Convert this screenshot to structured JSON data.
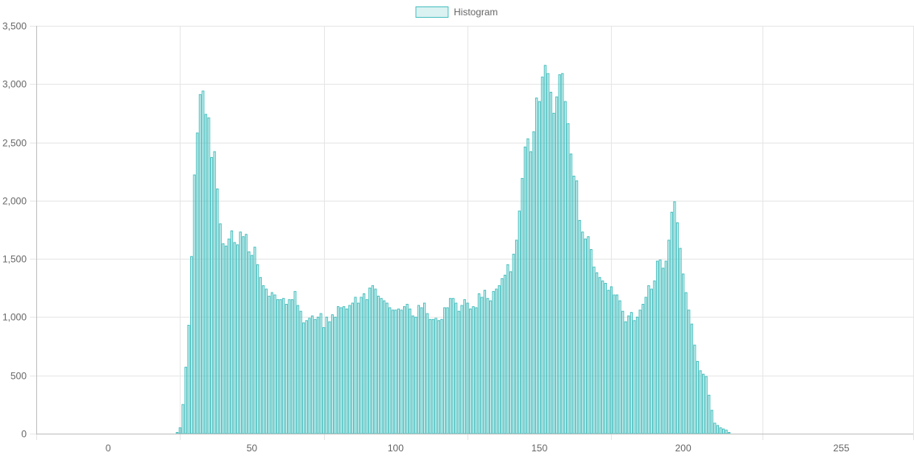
{
  "chart_data": {
    "type": "bar",
    "legend": {
      "position": "top",
      "color": "#4bc0c0"
    },
    "series": [
      {
        "name": "Histogram",
        "color": "#4bc0c0",
        "x_start": 0,
        "values": [
          0,
          0,
          0,
          0,
          0,
          0,
          0,
          0,
          0,
          0,
          0,
          0,
          0,
          0,
          0,
          0,
          0,
          0,
          0,
          0,
          0,
          0,
          0,
          0,
          10,
          50,
          250,
          570,
          930,
          1520,
          2220,
          2580,
          2910,
          2940,
          2740,
          2710,
          2370,
          2420,
          2100,
          1800,
          1630,
          1610,
          1670,
          1740,
          1640,
          1620,
          1730,
          1690,
          1710,
          1560,
          1530,
          1600,
          1450,
          1340,
          1270,
          1240,
          1180,
          1210,
          1190,
          1150,
          1150,
          1160,
          1110,
          1150,
          1150,
          1220,
          1100,
          1050,
          950,
          970,
          990,
          1010,
          980,
          1000,
          1030,
          910,
          1000,
          960,
          1020,
          1000,
          1090,
          1080,
          1090,
          1070,
          1100,
          1120,
          1170,
          1120,
          1170,
          1200,
          1150,
          1250,
          1270,
          1240,
          1180,
          1160,
          1140,
          1120,
          1080,
          1060,
          1060,
          1070,
          1060,
          1090,
          1110,
          1070,
          1010,
          1000,
          1100,
          1080,
          1120,
          1030,
          980,
          980,
          990,
          970,
          980,
          1080,
          1080,
          1160,
          1160,
          1120,
          1050,
          1100,
          1150,
          1120,
          1070,
          1090,
          1080,
          1200,
          1170,
          1230,
          1160,
          1140,
          1220,
          1240,
          1270,
          1330,
          1360,
          1450,
          1390,
          1540,
          1660,
          1910,
          2190,
          2460,
          2530,
          2420,
          2590,
          2880,
          2850,
          3060,
          3160,
          3090,
          2930,
          2750,
          2890,
          3080,
          3090,
          2850,
          2660,
          2400,
          2210,
          2170,
          1830,
          1730,
          1670,
          1690,
          1580,
          1430,
          1380,
          1340,
          1310,
          1290,
          1230,
          1260,
          1190,
          1190,
          1140,
          1050,
          960,
          1010,
          1040,
          970,
          1000,
          1060,
          1110,
          1170,
          1270,
          1240,
          1310,
          1480,
          1490,
          1420,
          1480,
          1660,
          1900,
          1990,
          1810,
          1590,
          1370,
          1210,
          1060,
          940,
          760,
          620,
          540,
          510,
          490,
          330,
          200,
          90,
          70,
          50,
          40,
          30,
          10,
          0,
          0,
          0,
          0,
          0,
          0,
          0,
          0,
          0,
          0,
          0,
          0,
          0,
          0,
          0,
          0,
          0,
          0,
          0,
          0,
          0,
          0,
          0,
          0,
          0,
          0,
          0,
          0,
          0,
          0,
          0,
          0,
          0,
          0,
          0,
          0,
          0,
          0,
          0,
          0,
          0
        ]
      }
    ],
    "x_tick_labels": [
      "0",
      "50",
      "100",
      "150",
      "200",
      "255"
    ],
    "x_tick_values": [
      0,
      50,
      100,
      150,
      200,
      255
    ],
    "y_tick_labels": [
      "0",
      "500",
      "1,000",
      "1,500",
      "2,000",
      "2,500",
      "3,000",
      "3,500"
    ],
    "y_tick_values": [
      0,
      500,
      1000,
      1500,
      2000,
      2500,
      3000,
      3500
    ],
    "xlim": [
      -25,
      280
    ],
    "ylim": [
      0,
      3500
    ],
    "grid": true
  }
}
